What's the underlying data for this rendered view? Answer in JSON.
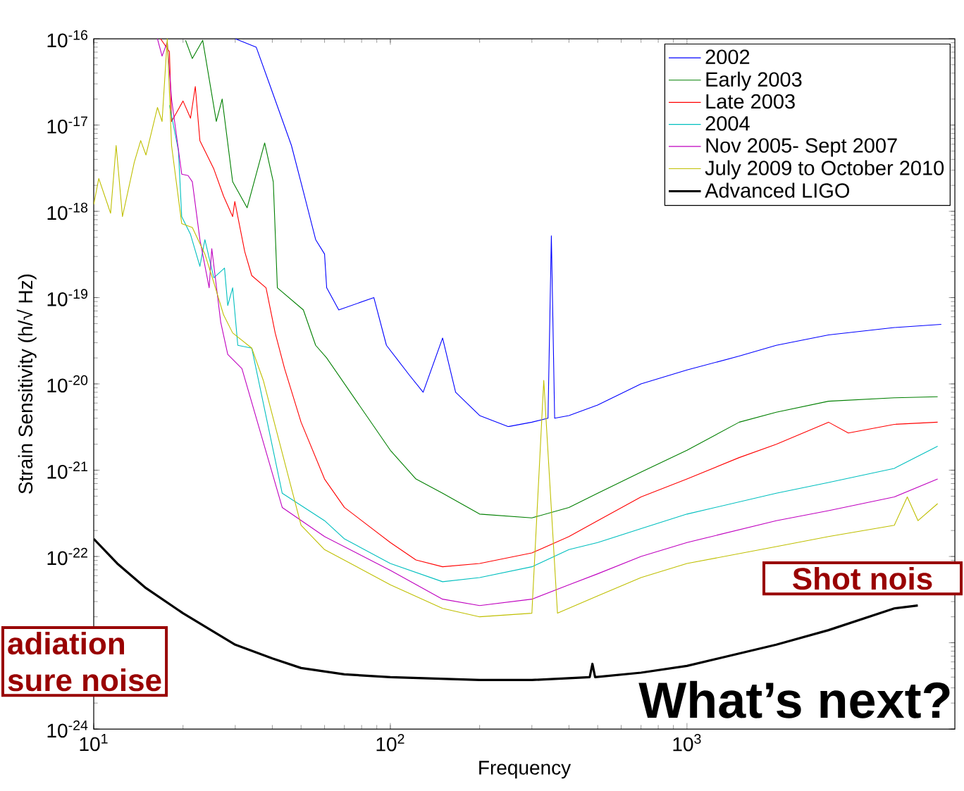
{
  "chart_data": {
    "type": "line",
    "xlabel": "Frequency",
    "ylabel": "Strain Sensitivity (h/√ Hz)",
    "log": "xy",
    "legend": "top right",
    "xlim": [
      10,
      8000
    ],
    "ylim": [
      1e-24,
      1e-16
    ],
    "xticks": [
      {
        "value": 10,
        "label": "10$^{1}$"
      },
      {
        "value": 100,
        "label": "10$^{2}$"
      },
      {
        "value": 1000,
        "label": "10$^{3}$"
      }
    ],
    "yticks": [
      {
        "value": 1e-24,
        "label": "10$^{-24}$"
      },
      {
        "value": 1e-23,
        "label": null
      },
      {
        "value": 1e-22,
        "label": "10$^{-22}$"
      },
      {
        "value": 1e-21,
        "label": "10$^{-21}$"
      },
      {
        "value": 1e-20,
        "label": "10$^{-20}$"
      },
      {
        "value": 1e-19,
        "label": "10$^{-19}$"
      },
      {
        "value": 1e-18,
        "label": "10$^{-18}$"
      },
      {
        "value": 1e-17,
        "label": "10$^{-17}$"
      },
      {
        "value": 1e-16,
        "label": "10$^{-16}$"
      }
    ],
    "annotations": [
      "adiation",
      "sure noise",
      "Shot nois",
      "What’s next?"
    ],
    "series": [
      {
        "name": "2002",
        "color": "#0000ff",
        "x": [
          30,
          35.3,
          39.4,
          46.4,
          50.9,
          56,
          60,
          61,
          67,
          88,
          97,
          116,
          129,
          150,
          166,
          200,
          250,
          300,
          340,
          349,
          358,
          400,
          500,
          700,
          1000,
          1500,
          2000,
          3000,
          5000,
          7200
        ],
        "values": [
          1e-16,
          8e-17,
          2.8e-17,
          5.8e-18,
          1.7e-18,
          4.7e-19,
          3.2e-19,
          1.3e-19,
          7.2e-20,
          1e-19,
          2.8e-20,
          1.26e-20,
          8e-21,
          3.4e-20,
          8e-21,
          4.3e-21,
          3.2e-21,
          3.6e-21,
          4e-21,
          5.2e-19,
          4e-21,
          4.3e-21,
          5.7e-21,
          1e-20,
          1.45e-20,
          2.1e-20,
          2.8e-20,
          3.7e-20,
          4.5e-20,
          4.9e-20
        ]
      },
      {
        "name": "Early 2003",
        "color": "#007f00",
        "x": [
          20.4,
          21.5,
          23.3,
          25.9,
          27.1,
          29.4,
          32.9,
          37.7,
          40.3,
          41.6,
          50.9,
          56,
          61,
          100,
          122,
          150,
          200,
          300,
          400,
          500,
          700,
          1000,
          1500,
          2000,
          3000,
          5000,
          7000
        ],
        "values": [
          9.6e-17,
          5.9e-17,
          9.6e-17,
          1.1e-17,
          2e-17,
          2.2e-18,
          1.1e-18,
          6.2e-18,
          2.2e-18,
          1.3e-19,
          7.2e-20,
          2.8e-20,
          2e-20,
          1.7e-21,
          7.9e-22,
          5.4e-22,
          3.1e-22,
          2.8e-22,
          3.7e-22,
          5.4e-22,
          9.5e-22,
          1.7e-21,
          3.6e-21,
          4.7e-21,
          6.3e-21,
          6.9e-21,
          7.1e-21
        ]
      },
      {
        "name": "Late 2003",
        "color": "#ff0000",
        "x": [
          16.8,
          18,
          18.3,
          20,
          21.2,
          22,
          22.8,
          25.4,
          27.4,
          29.4,
          29.9,
          32.3,
          34.1,
          38.1,
          40.9,
          44,
          50,
          60,
          70,
          100,
          122,
          150,
          200,
          300,
          400,
          500,
          700,
          1000,
          1500,
          2000,
          3000,
          3500,
          5000,
          7000
        ],
        "values": [
          1e-16,
          7.1e-17,
          1.1e-17,
          1.9e-17,
          1.2e-17,
          2.8e-17,
          6.6e-18,
          3.1e-18,
          1.5e-18,
          8.7e-19,
          1.3e-18,
          3.4e-19,
          1.8e-19,
          1.3e-19,
          3.9e-20,
          1.5e-20,
          3.6e-21,
          7.9e-22,
          3.7e-22,
          1.45e-22,
          9.1e-23,
          7.6e-23,
          8.3e-23,
          1.1e-22,
          1.7e-22,
          2.6e-22,
          4.9e-22,
          7.9e-22,
          1.4e-21,
          2e-21,
          3.6e-21,
          2.7e-21,
          3.4e-21,
          3.6e-21
        ]
      },
      {
        "name": "2004",
        "color": "#00bfbf",
        "x": [
          18,
          19.3,
          19.8,
          21.2,
          22.8,
          23.7,
          25.4,
          27.6,
          28.3,
          29.4,
          30.6,
          34.1,
          43.2,
          60,
          70,
          100,
          150,
          200,
          300,
          400,
          500,
          700,
          1000,
          2000,
          3000,
          5000,
          7000
        ],
        "values": [
          1.7e-17,
          5.1e-18,
          8.7e-19,
          5.4e-19,
          2.3e-19,
          4.7e-19,
          1.7e-19,
          2.2e-19,
          8.1e-20,
          1.3e-19,
          2.8e-20,
          2.6e-20,
          5.4e-22,
          2.6e-22,
          1.6e-22,
          8.3e-23,
          5.1e-23,
          5.7e-23,
          7.6e-23,
          1.2e-22,
          1.45e-22,
          2.1e-22,
          3.1e-22,
          5.4e-22,
          7.2e-22,
          1.05e-21,
          1.9e-21
        ]
      },
      {
        "name": "Nov 2005- Sept 2007",
        "color": "#bf00bf",
        "x": [
          16.4,
          17,
          17.7,
          18.3,
          19.8,
          20.8,
          21.5,
          22.8,
          24.5,
          25,
          26.8,
          28.3,
          31.6,
          43.2,
          60,
          100,
          150,
          200,
          300,
          400,
          500,
          700,
          1000,
          2000,
          3000,
          5000,
          7000
        ],
        "values": [
          1e-16,
          6.3e-17,
          9.1e-17,
          2e-17,
          2.7e-18,
          2.6e-18,
          2.2e-18,
          4.7e-19,
          1.3e-19,
          3.7e-19,
          5.2e-20,
          2.2e-20,
          1.5e-20,
          3.7e-22,
          1.7e-22,
          6.9e-23,
          3.2e-23,
          2.7e-23,
          3.2e-23,
          4.7e-23,
          6.3e-23,
          1e-22,
          1.45e-22,
          2.6e-22,
          3.4e-22,
          4.9e-22,
          7.9e-22
        ]
      },
      {
        "name": "July 2009 to October 2010",
        "color": "#bfbf00",
        "x": [
          10,
          10.4,
          11.4,
          11.9,
          12.5,
          13.7,
          14.4,
          15,
          16.4,
          17,
          17.7,
          18.3,
          19.8,
          21.5,
          23.7,
          25.4,
          27.4,
          29.4,
          34.1,
          37.3,
          50,
          60,
          100,
          150,
          200,
          300,
          329,
          366,
          500,
          700,
          1000,
          2000,
          3000,
          5000,
          5530,
          6010,
          7000
        ],
        "values": [
          1.2e-18,
          2.4e-18,
          9.5e-19,
          5.8e-18,
          8.7e-19,
          3.7e-18,
          6.6e-18,
          4.5e-18,
          1.6e-17,
          1.1e-17,
          1e-16,
          5.8e-18,
          7.2e-19,
          6.5e-19,
          3.2e-19,
          1.5e-19,
          6.3e-20,
          3.9e-20,
          2.6e-20,
          1.1e-20,
          2.3e-22,
          1.2e-22,
          4.7e-23,
          2.5e-23,
          2e-23,
          2.2e-23,
          1.1e-20,
          2.2e-23,
          3.5e-23,
          5.7e-23,
          8.3e-23,
          1.3e-22,
          1.7e-22,
          2.3e-22,
          4.9e-22,
          2.6e-22,
          4.1e-22
        ]
      },
      {
        "name": "Advanced LIGO",
        "color": "#000000",
        "x": [
          10,
          12,
          15,
          20,
          30,
          40,
          50,
          70,
          100,
          200,
          300,
          470,
          480,
          490,
          700,
          1000,
          2000,
          3000,
          5000,
          6000
        ],
        "values": [
          1.6e-22,
          8.3e-23,
          4.3e-23,
          2.2e-23,
          9.5e-24,
          6.6e-24,
          5.1e-24,
          4.3e-24,
          4e-24,
          3.7e-24,
          3.7e-24,
          4e-24,
          5.7e-24,
          4e-24,
          4.5e-24,
          5.4e-24,
          9.5e-24,
          1.4e-23,
          2.5e-23,
          2.7e-23
        ]
      }
    ]
  }
}
